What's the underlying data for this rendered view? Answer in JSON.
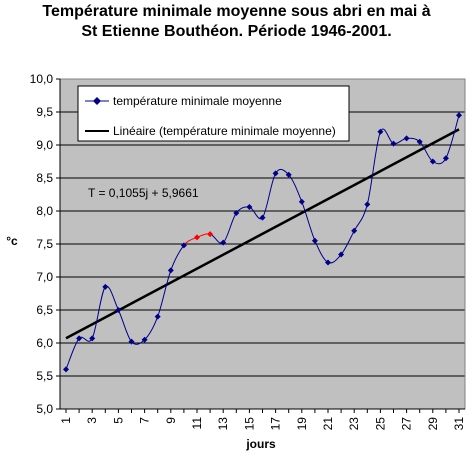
{
  "chart_data": {
    "type": "line",
    "title": "Température minimale moyenne sous abri en mai à",
    "subtitle": "St Etienne Bouthéon. Période 1946-2001.",
    "xlabel": "jours",
    "ylabel": "°c",
    "x": [
      1,
      2,
      3,
      4,
      5,
      6,
      7,
      8,
      9,
      10,
      11,
      12,
      13,
      14,
      15,
      16,
      17,
      18,
      19,
      20,
      21,
      22,
      23,
      24,
      25,
      26,
      27,
      28,
      29,
      30,
      31
    ],
    "x_tick_labels": [
      "1",
      "3",
      "5",
      "7",
      "9",
      "11",
      "13",
      "15",
      "17",
      "19",
      "21",
      "23",
      "25",
      "27",
      "29",
      "31"
    ],
    "x_tick_values": [
      1,
      3,
      5,
      7,
      9,
      11,
      13,
      15,
      17,
      19,
      21,
      23,
      25,
      27,
      29,
      31
    ],
    "ylim": [
      5.0,
      10.0
    ],
    "y_ticks": [
      5.0,
      5.5,
      6.0,
      6.5,
      7.0,
      7.5,
      8.0,
      8.5,
      9.0,
      9.5,
      10.0
    ],
    "y_tick_labels": [
      "5,0",
      "5,5",
      "6,0",
      "6,5",
      "7,0",
      "7,5",
      "8,0",
      "8,5",
      "9,0",
      "9,5",
      "10,0"
    ],
    "grid": true,
    "legend_position": "top",
    "series": [
      {
        "name": "température minimale moyenne",
        "color": "#00008b",
        "highlight_color": "#ff0000",
        "highlight_x": [
          11,
          12
        ],
        "values": [
          5.6,
          6.07,
          6.07,
          6.85,
          6.5,
          6.02,
          6.05,
          6.4,
          7.1,
          7.48,
          7.6,
          7.65,
          7.52,
          7.97,
          8.06,
          7.9,
          8.57,
          8.55,
          8.14,
          7.55,
          7.22,
          7.34,
          7.7,
          8.1,
          9.2,
          9.02,
          9.1,
          9.05,
          8.75,
          8.8,
          9.45
        ]
      },
      {
        "name": "Linéaire (température minimale moyenne)",
        "color": "#000000",
        "type": "trendline",
        "slope": 0.1055,
        "intercept": 5.9661
      }
    ],
    "annotation": "T = 0,1055j + 5,9661",
    "plot_background": "#c0c0c0"
  }
}
